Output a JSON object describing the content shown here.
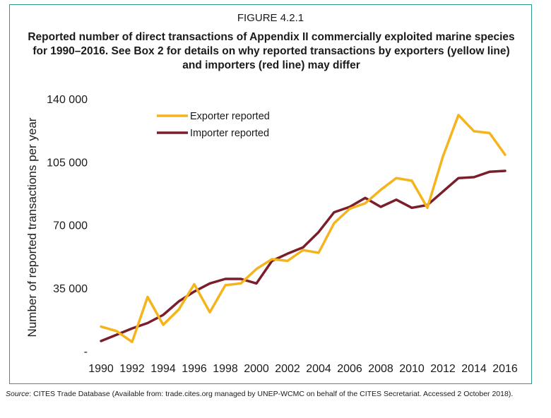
{
  "figure_label": "FIGURE 4.2.1",
  "figure_title": "Reported number of direct transactions of Appendix II commercially exploited marine species for 1990–2016. See Box 2 for details on why reported transactions by exporters (yellow line) and importers (red line) may differ",
  "source_label": "Source",
  "source_text": ": CITES Trade Database (Available from: trade.cites.org managed by UNEP-WCMC on behalf of the CITES Secretariat. Accessed 2 October 2018).",
  "chart_data": {
    "type": "line",
    "title": "",
    "xlabel": "",
    "ylabel": "Number of reported transactions per year",
    "x": [
      1990,
      1991,
      1992,
      1993,
      1994,
      1995,
      1996,
      1997,
      1998,
      1999,
      2000,
      2001,
      2002,
      2003,
      2004,
      2005,
      2006,
      2007,
      2008,
      2009,
      2010,
      2011,
      2012,
      2013,
      2014,
      2015,
      2016
    ],
    "xticks": [
      "1990",
      "1992",
      "1994",
      "1996",
      "1998",
      "2000",
      "2002",
      "2004",
      "2006",
      "2008",
      "2010",
      "2012",
      "2014",
      "2016"
    ],
    "yticks": [
      {
        "value": 0,
        "label": "-"
      },
      {
        "value": 35000,
        "label": "35 000"
      },
      {
        "value": 70000,
        "label": "70 000"
      },
      {
        "value": 105000,
        "label": "105 000"
      },
      {
        "value": 140000,
        "label": "140 000"
      }
    ],
    "ylim": [
      0,
      140000
    ],
    "xlim": [
      1990,
      2016
    ],
    "grid": false,
    "legend_position": "top-left",
    "series": [
      {
        "name": "Exporter reported",
        "color": "#f5b41c",
        "values": [
          13500,
          11000,
          5000,
          30000,
          14500,
          23000,
          37000,
          21500,
          36500,
          37500,
          45500,
          51000,
          50000,
          56000,
          54500,
          71000,
          79000,
          82000,
          89500,
          96000,
          94500,
          79500,
          108000,
          131000,
          122000,
          121000,
          109000
        ]
      },
      {
        "name": "Importer reported",
        "color": "#7a1e2c",
        "values": [
          5500,
          9000,
          12500,
          15500,
          20000,
          27500,
          33000,
          37500,
          40000,
          40000,
          37500,
          50000,
          54000,
          57500,
          66000,
          77000,
          80000,
          85000,
          80000,
          84000,
          79500,
          81000,
          88500,
          96000,
          96500,
          99500,
          100000
        ]
      }
    ]
  }
}
